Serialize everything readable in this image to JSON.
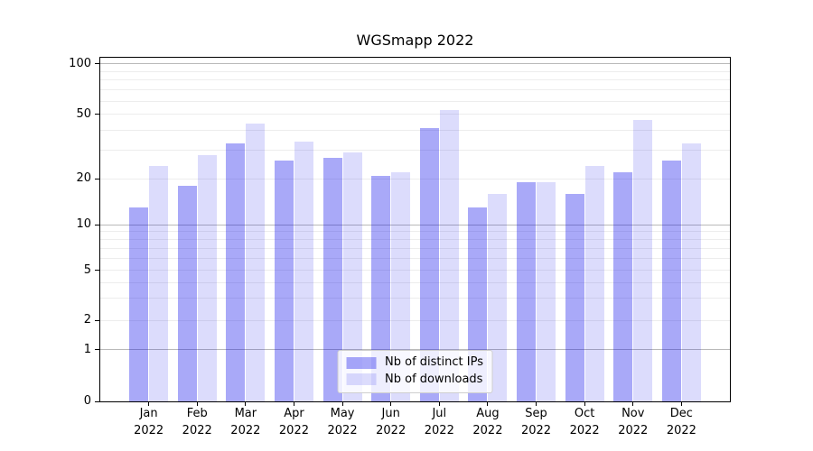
{
  "title": "WGSmapp 2022",
  "legend": {
    "items": [
      {
        "label": "Nb of distinct IPs"
      },
      {
        "label": "Nb of downloads"
      }
    ]
  },
  "colors": {
    "bar_distinct_ips": "rgba(10,10,235,0.35)",
    "bar_downloads": "rgba(10,10,235,0.14)",
    "bar_distinct_ips_hex": "#adadf8",
    "bar_downloads_hex": "#dedefc",
    "major_gridline": "#b9b9b9",
    "minor_gridline": "#ededed",
    "axis": "#000000"
  },
  "chart_data": {
    "type": "bar",
    "title": "WGSmapp 2022",
    "categories": [
      "Jan 2022",
      "Feb 2022",
      "Mar 2022",
      "Apr 2022",
      "May 2022",
      "Jun 2022",
      "Jul 2022",
      "Aug 2022",
      "Sep 2022",
      "Oct 2022",
      "Nov 2022",
      "Dec 2022"
    ],
    "series": [
      {
        "name": "Nb of distinct IPs",
        "color": "rgba(10,10,235,0.35)",
        "values": [
          13,
          18,
          33,
          26,
          27,
          21,
          41,
          13,
          19,
          16,
          22,
          26
        ]
      },
      {
        "name": "Nb of downloads",
        "color": "rgba(10,10,235,0.14)",
        "values": [
          24,
          28,
          44,
          34,
          29,
          22,
          53,
          16,
          19,
          24,
          46,
          33
        ]
      }
    ],
    "xlabel": "",
    "ylabel": "",
    "yscale": "symlog",
    "ylim": [
      0,
      115
    ],
    "yticks": [
      0,
      1,
      2,
      5,
      10,
      20,
      50,
      100
    ],
    "minor_yticks": [
      3,
      4,
      6,
      7,
      8,
      9,
      30,
      40,
      60,
      70,
      80,
      90
    ],
    "major_grid_values": [
      1,
      10,
      100
    ],
    "grid": true,
    "legend_position": "lower center"
  }
}
